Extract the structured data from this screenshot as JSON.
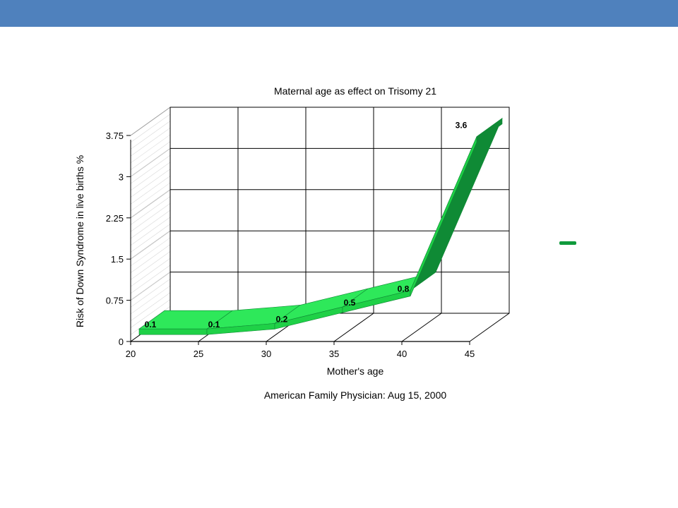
{
  "slide": {
    "accent_color": "#4f81bd"
  },
  "chart_data": {
    "type": "line",
    "title": "Maternal age as effect on Trisomy 21",
    "xlabel": "Mother's age",
    "ylabel": "Risk of Down Syndrome in live births %",
    "source": "American Family Physician: Aug 15, 2000",
    "x": [
      20,
      25,
      30,
      35,
      40,
      45
    ],
    "x_ticks": [
      "20",
      "25",
      "30",
      "35",
      "40",
      "45"
    ],
    "y_ticks": [
      "0",
      "0.75",
      "1.5",
      "2.25",
      "3",
      "3.75"
    ],
    "ylim": [
      0,
      3.75
    ],
    "series": [
      {
        "values": [
          0.1,
          0.1,
          0.2,
          0.5,
          0.8,
          3.6
        ],
        "labels": [
          "0.1",
          "0.1",
          "0.2",
          "0.5",
          "0.8",
          "3.6"
        ],
        "color": "#1fd147",
        "dark_color": "#0f8a35",
        "top_color": "#2ee85a"
      }
    ],
    "legend": {
      "placement": "right"
    },
    "grid": true,
    "style": "3d"
  }
}
